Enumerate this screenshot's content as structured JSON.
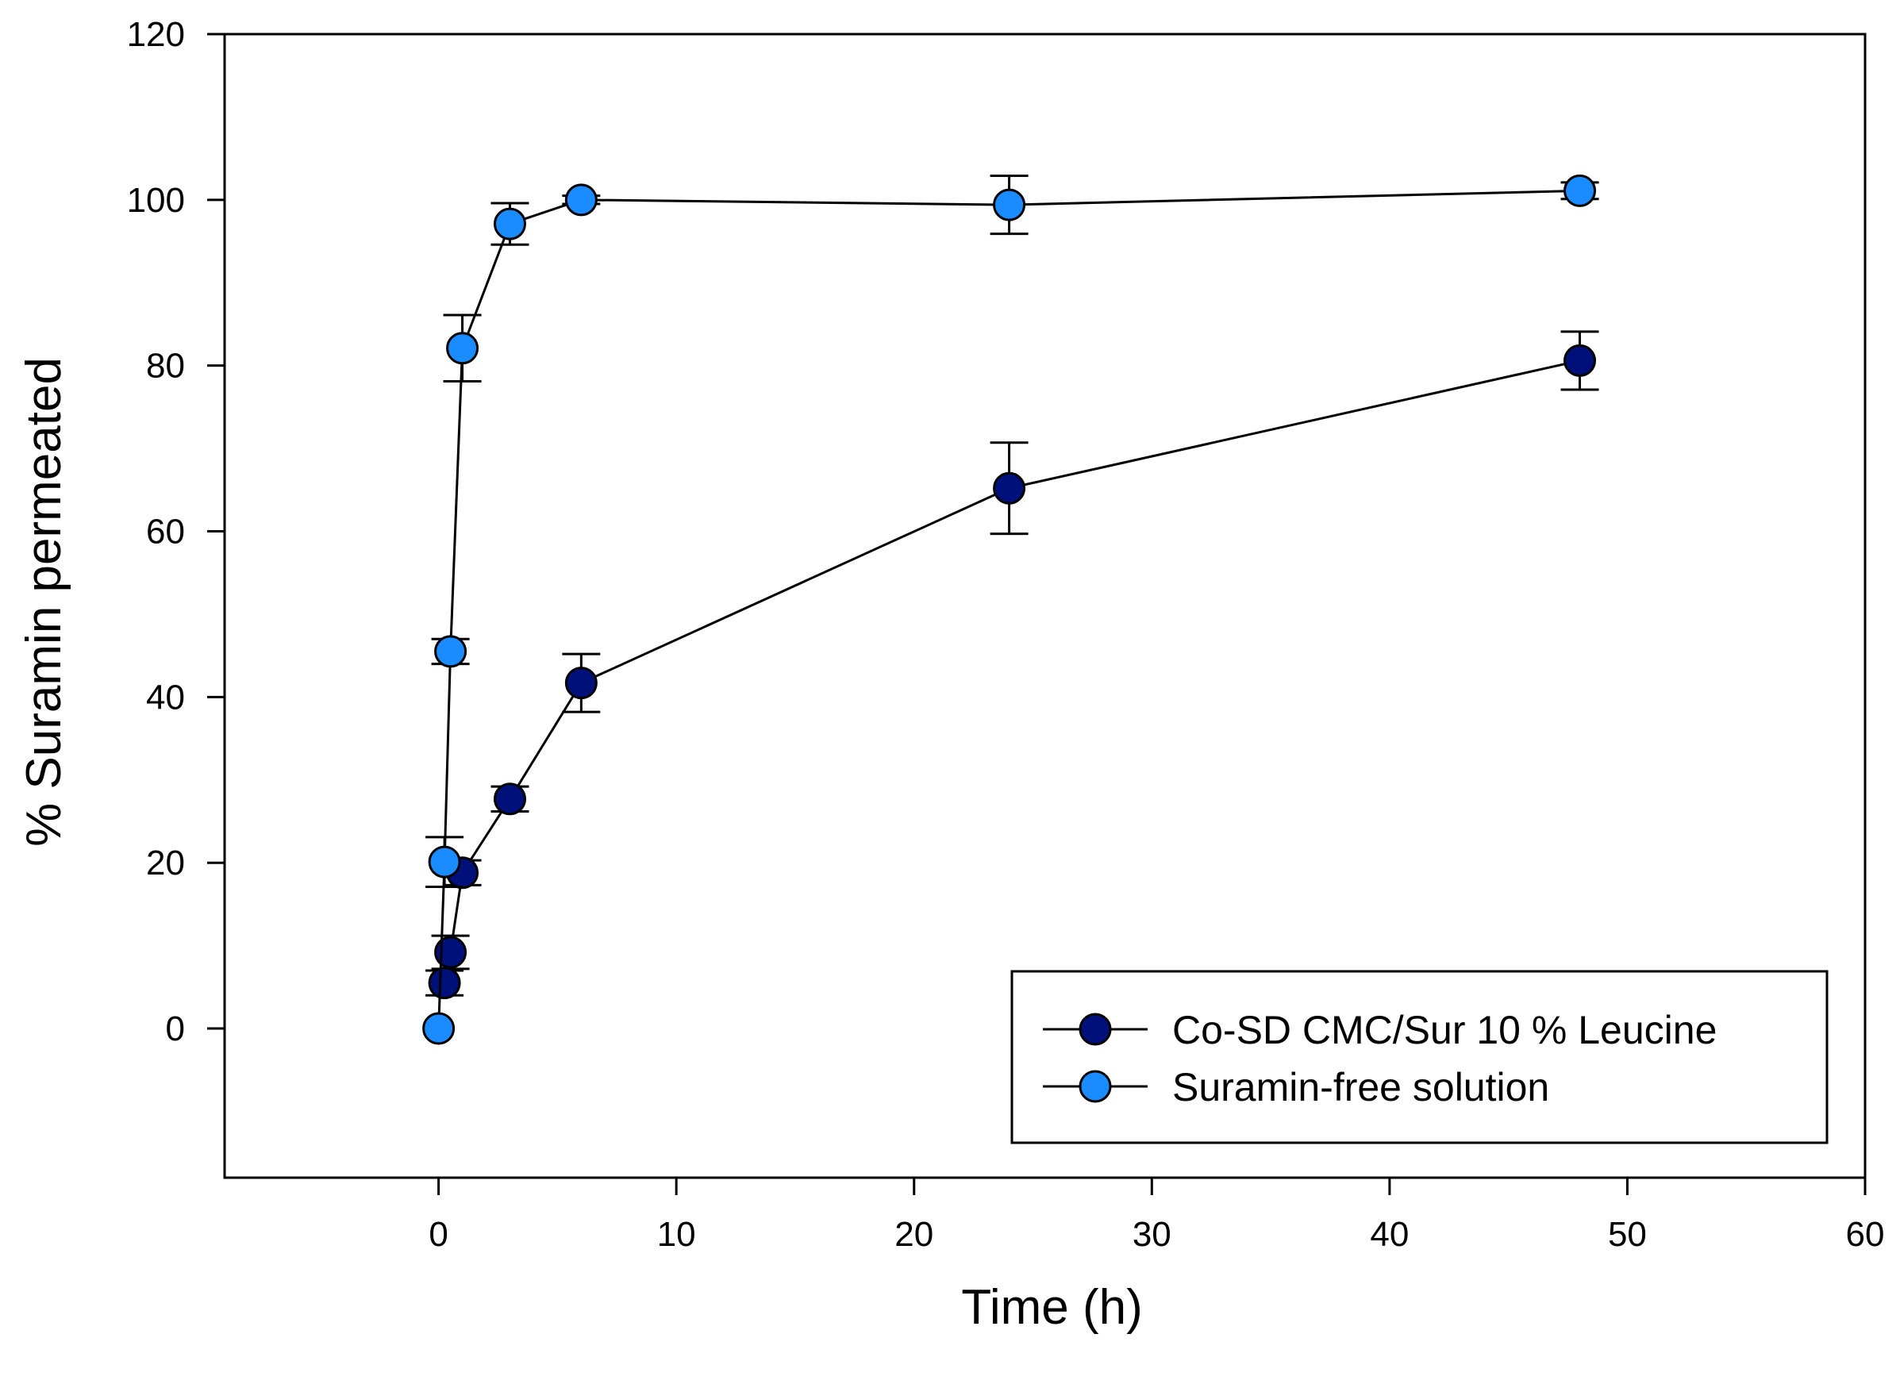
{
  "chart_data": {
    "type": "line",
    "title": "",
    "xlabel": "Time (h)",
    "ylabel": "% Suramin permeated",
    "xlim": [
      -9,
      60
    ],
    "ylim": [
      -18,
      120
    ],
    "xticks": [
      0,
      10,
      20,
      30,
      40,
      50,
      60
    ],
    "yticks": [
      0,
      20,
      40,
      60,
      80,
      100,
      120
    ],
    "grid": false,
    "legend_position": "bottom-right",
    "series": [
      {
        "name": "Co-SD CMC/Sur 10 % Leucine",
        "color": "#00107a",
        "x": [
          0.25,
          0.5,
          1,
          3,
          6,
          24,
          48
        ],
        "y": [
          5.5,
          9.2,
          18.8,
          27.7,
          41.7,
          65.2,
          80.6
        ],
        "error": [
          1.5,
          2,
          1.5,
          1.5,
          3.5,
          5.5,
          3.5
        ]
      },
      {
        "name": "Suramin-free solution",
        "color": "#1a8cff",
        "x": [
          0,
          0.25,
          0.5,
          1,
          3,
          6,
          24,
          48
        ],
        "y": [
          0,
          20.1,
          45.5,
          82.1,
          97.1,
          100,
          99.4,
          101.1
        ],
        "error": [
          0,
          3,
          1.5,
          4,
          2.5,
          0.5,
          3.5,
          1
        ]
      }
    ]
  }
}
